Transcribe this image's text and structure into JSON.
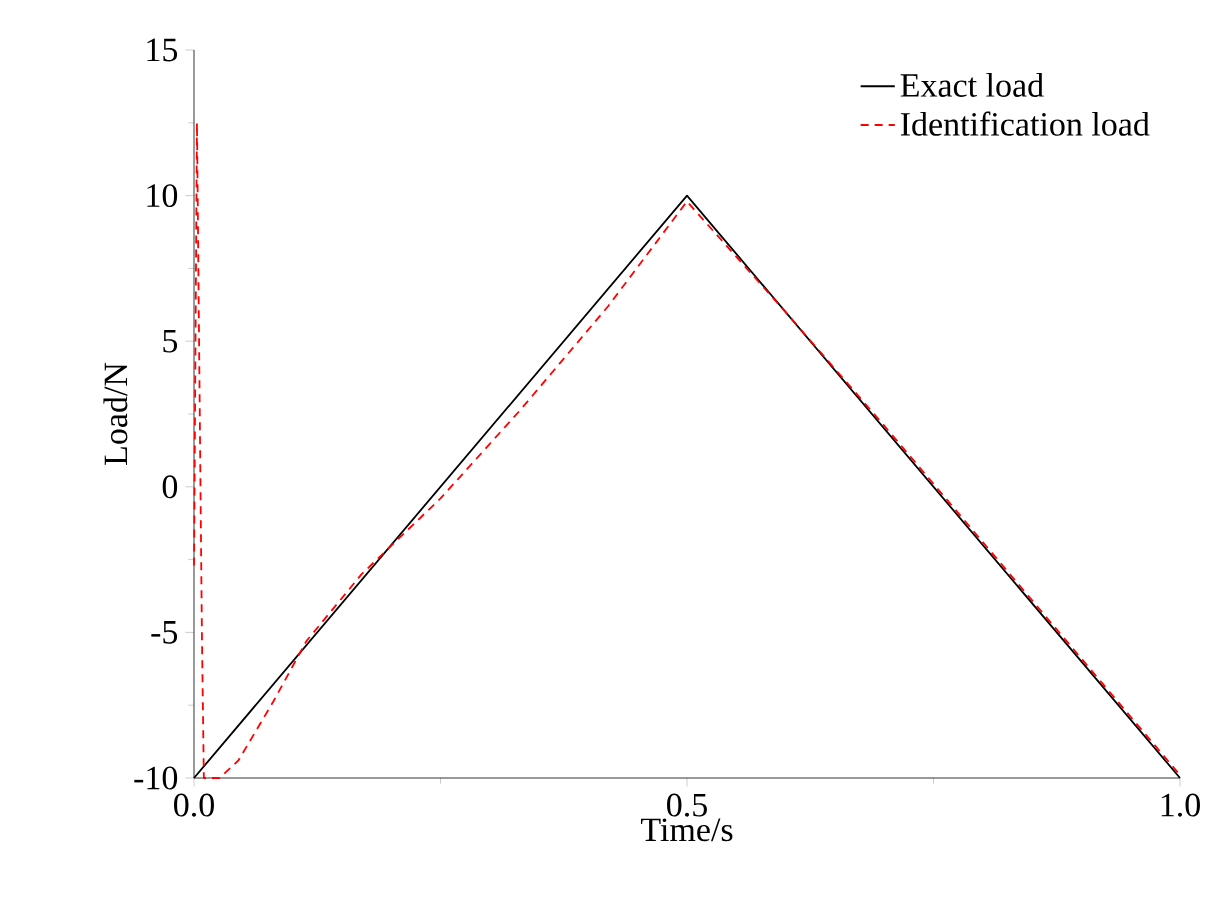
{
  "chart_data": {
    "type": "line",
    "xlabel": "Time/s",
    "ylabel": "Load/N",
    "xlim": [
      0,
      1
    ],
    "ylim": [
      -10,
      15
    ],
    "xticks": [
      {
        "value": 0,
        "label": "0.0"
      },
      {
        "value": 0.5,
        "label": "0.5"
      },
      {
        "value": 1,
        "label": "1.0"
      }
    ],
    "yticks": [
      -10,
      -5,
      0,
      5,
      10,
      15
    ],
    "legend": "top right",
    "grid": false,
    "series": [
      {
        "name": "Exact load",
        "color": "#000000",
        "line_style": "solid",
        "x": [
          0,
          0.5,
          1
        ],
        "values": [
          -10,
          10,
          -10
        ]
      },
      {
        "name": "Identification load",
        "color": "#ff0000",
        "line_style": "dashed",
        "x": [
          0,
          0.003,
          0.008,
          0.01,
          0.026,
          0.045,
          0.08,
          0.114,
          0.17,
          0.25,
          0.33,
          0.42,
          0.5,
          0.6,
          0.7,
          0.8,
          0.9,
          1.0
        ],
        "values": [
          -2.7,
          12.5,
          -5,
          -10,
          -10,
          -9.4,
          -7.4,
          -5.3,
          -3.0,
          -0.4,
          2.6,
          6.2,
          9.8,
          6.0,
          2.1,
          -1.9,
          -5.9,
          -9.9
        ]
      }
    ]
  }
}
